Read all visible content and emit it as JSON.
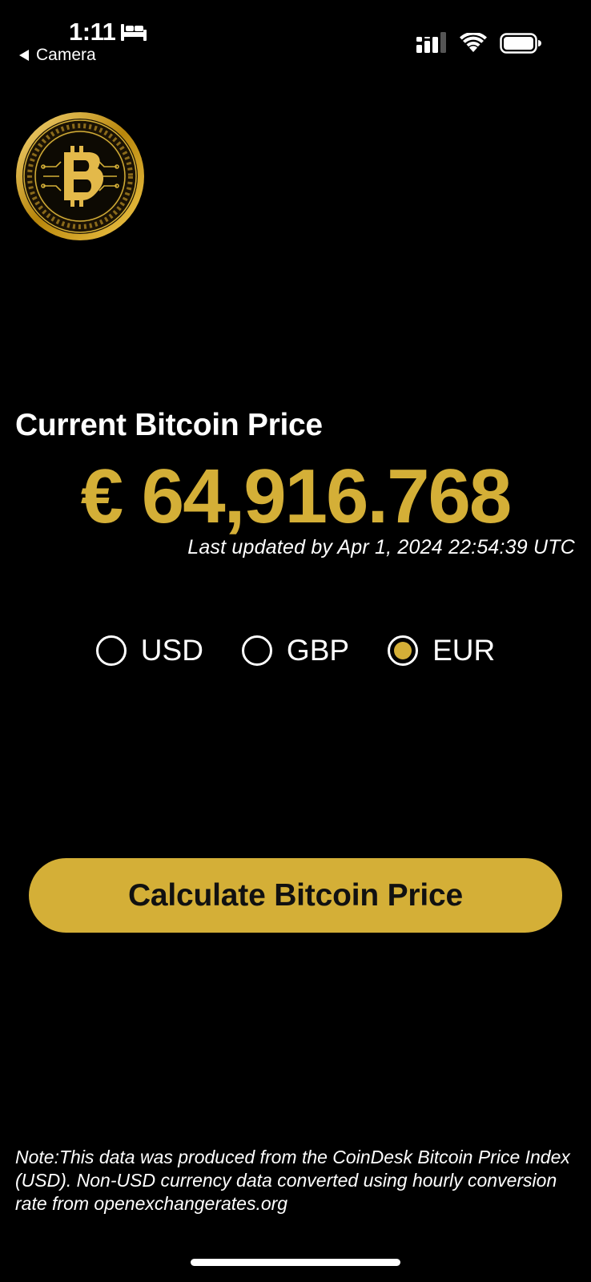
{
  "status_bar": {
    "time": "1:11",
    "back_label": "Camera",
    "icons": [
      "bed-icon",
      "cellular-signal-icon",
      "wifi-icon",
      "battery-icon"
    ]
  },
  "logo": {
    "icon": "bitcoin-coin-icon"
  },
  "price": {
    "heading": "Current Bitcoin Price",
    "value": "€ 64,916.768",
    "last_updated": "Last updated by Apr 1, 2024 22:54:39 UTC"
  },
  "currencies": {
    "selected": "EUR",
    "options": [
      {
        "label": "USD",
        "selected": false
      },
      {
        "label": "GBP",
        "selected": false
      },
      {
        "label": "EUR",
        "selected": true
      }
    ]
  },
  "action": {
    "calculate_label": "Calculate Bitcoin Price"
  },
  "note": {
    "text": "Note:This data was produced from the CoinDesk Bitcoin Price Index (USD). Non-USD currency data converted using hourly conversion rate from openexchangerates.org"
  },
  "colors": {
    "background": "#000000",
    "accent_gold": "#d4af37",
    "text": "#ffffff"
  }
}
